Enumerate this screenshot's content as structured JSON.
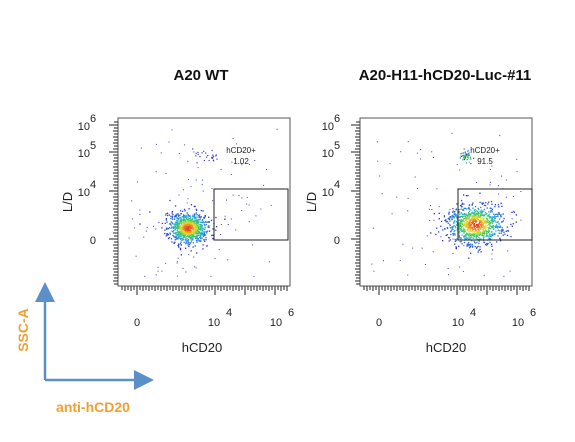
{
  "chart_data": [
    {
      "type": "scatter",
      "title": "A20  WT",
      "xlabel": "hCD20",
      "ylabel": "L/D",
      "x_scale": "biexponential",
      "y_scale": "biexponential",
      "x_tick_labels": [
        {
          "base": "0",
          "exp": ""
        },
        {
          "base": "10",
          "exp": "4"
        },
        {
          "base": "10",
          "exp": "6"
        }
      ],
      "y_tick_labels": [
        {
          "base": "0",
          "exp": ""
        },
        {
          "base": "10",
          "exp": "4"
        },
        {
          "base": "10",
          "exp": "5"
        },
        {
          "base": "10",
          "exp": "6"
        }
      ],
      "gate": {
        "name": "hCD20+",
        "percent": "1.02",
        "x_range": [
          10000,
          1000000
        ],
        "y_range": [
          0,
          10000
        ]
      },
      "populations": [
        {
          "x_center": 3000,
          "y_center": 300,
          "density": "high"
        }
      ]
    },
    {
      "type": "scatter",
      "title": "A20-H11-hCD20-Luc-#11",
      "xlabel": "hCD20",
      "ylabel": "L/D",
      "x_scale": "biexponential",
      "y_scale": "biexponential",
      "x_tick_labels": [
        {
          "base": "0",
          "exp": ""
        },
        {
          "base": "10",
          "exp": "4"
        },
        {
          "base": "10",
          "exp": "6"
        }
      ],
      "y_tick_labels": [
        {
          "base": "0",
          "exp": ""
        },
        {
          "base": "10",
          "exp": "4"
        },
        {
          "base": "10",
          "exp": "5"
        },
        {
          "base": "10",
          "exp": "6"
        }
      ],
      "gate": {
        "name": "hCD20+",
        "percent": "91.5",
        "x_range": [
          10000,
          1000000
        ],
        "y_range": [
          0,
          10000
        ]
      },
      "populations": [
        {
          "x_center": 40000,
          "y_center": 500,
          "density": "high"
        }
      ]
    }
  ],
  "legend": {
    "vertical_label": "SSC-A",
    "horizontal_label": "anti-hCD20",
    "vertical_color": "#f0a030",
    "horizontal_color": "#f0a030",
    "arrow_color": "#5b8fc9"
  }
}
